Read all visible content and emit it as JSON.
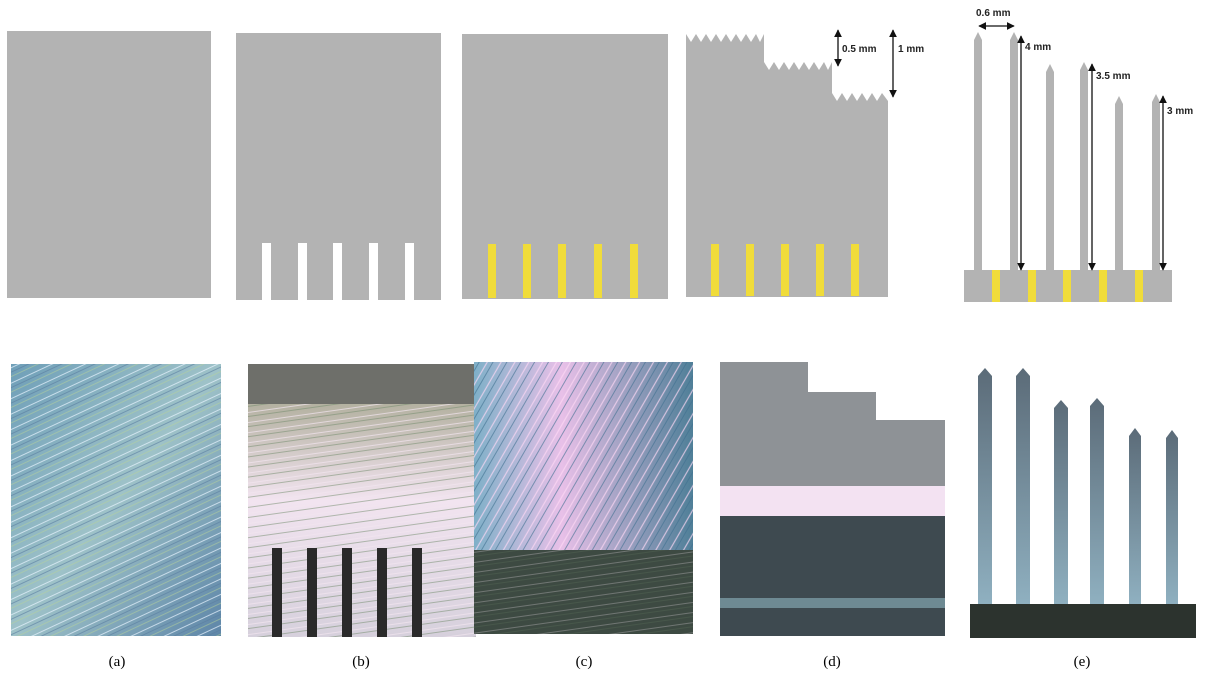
{
  "panels": [
    {
      "label": "(a)"
    },
    {
      "label": "(b)"
    },
    {
      "label": "(c)"
    },
    {
      "label": "(d)",
      "dimensions": [
        "0.5 mm",
        "1 mm"
      ]
    },
    {
      "label": "(e)",
      "dimensions": [
        "0.6 mm",
        "4 mm",
        "3.5 mm",
        "3 mm"
      ]
    }
  ]
}
